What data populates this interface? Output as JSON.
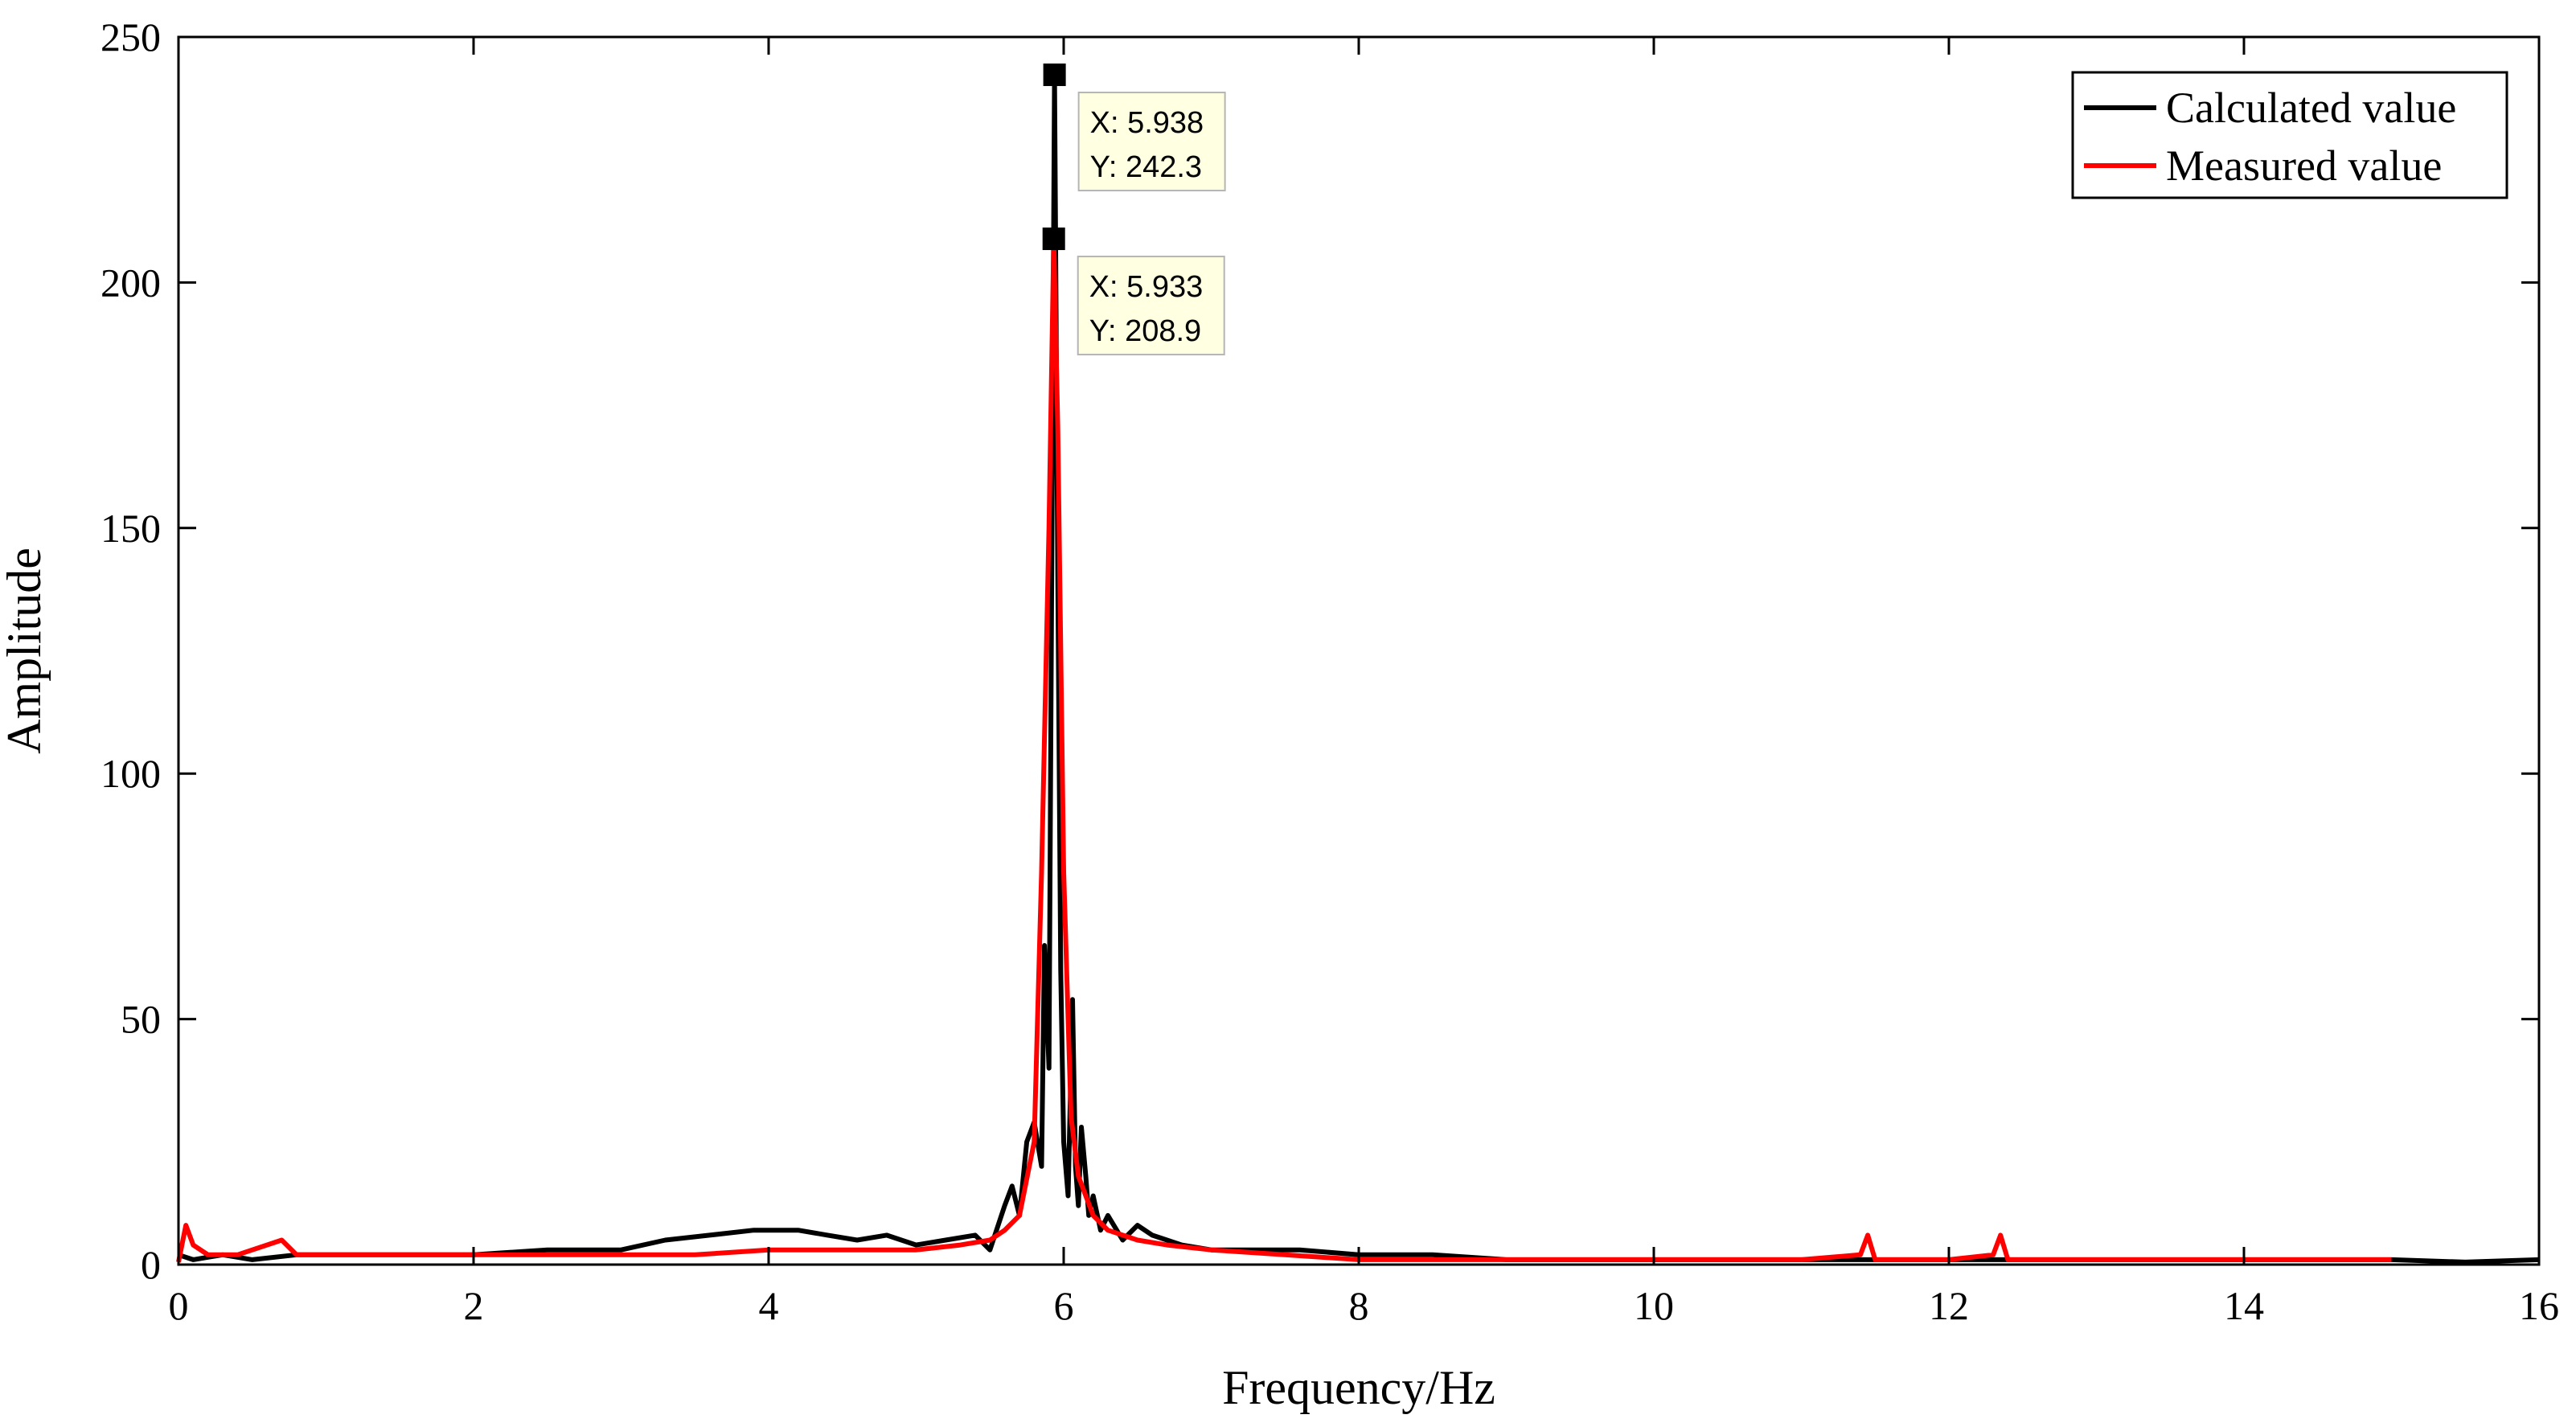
{
  "chart_data": {
    "type": "line",
    "xlabel": "Frequency/Hz",
    "ylabel": "Amplitude",
    "xlim": [
      0,
      16
    ],
    "ylim": [
      0,
      250
    ],
    "xticks": [
      0,
      2,
      4,
      6,
      8,
      10,
      12,
      14,
      16
    ],
    "yticks": [
      0,
      50,
      100,
      150,
      200,
      250
    ],
    "xtick_labels": [
      "0",
      "2",
      "4",
      "6",
      "8",
      "10",
      "12",
      "14",
      "16"
    ],
    "ytick_labels": [
      "0",
      "50",
      "100",
      "150",
      "200",
      "250"
    ],
    "grid": false,
    "legend_position": "top-right",
    "series": [
      {
        "name": "Calculated value",
        "color": "#000000",
        "x": [
          0,
          0.1,
          0.3,
          0.5,
          0.8,
          1.0,
          1.5,
          2.0,
          2.5,
          3.0,
          3.3,
          3.6,
          3.9,
          4.2,
          4.4,
          4.6,
          4.8,
          5.0,
          5.2,
          5.4,
          5.5,
          5.6,
          5.65,
          5.7,
          5.75,
          5.8,
          5.85,
          5.87,
          5.9,
          5.938,
          5.96,
          5.98,
          6.0,
          6.03,
          6.06,
          6.08,
          6.1,
          6.12,
          6.15,
          6.17,
          6.2,
          6.25,
          6.3,
          6.4,
          6.5,
          6.6,
          6.7,
          6.8,
          7.0,
          7.3,
          7.6,
          8.0,
          8.5,
          9.0,
          10.0,
          11.0,
          12.0,
          13.0,
          14.0,
          15.0,
          15.5,
          16.0
        ],
        "y": [
          2,
          1,
          2,
          1,
          2,
          2,
          2,
          2,
          3,
          3,
          5,
          6,
          7,
          7,
          6,
          5,
          6,
          4,
          5,
          6,
          3,
          12,
          16,
          10,
          25,
          29,
          20,
          65,
          40,
          242.3,
          140,
          60,
          25,
          14,
          54,
          20,
          12,
          28,
          18,
          10,
          14,
          7,
          10,
          5,
          8,
          6,
          5,
          4,
          3,
          3,
          3,
          2,
          2,
          1,
          1,
          1,
          1,
          1,
          1,
          1,
          0.5,
          1
        ]
      },
      {
        "name": "Measured value",
        "color": "#ff0000",
        "x": [
          0,
          0.05,
          0.1,
          0.2,
          0.4,
          0.7,
          0.8,
          1.0,
          1.5,
          2.0,
          2.5,
          3.0,
          3.5,
          4.0,
          4.5,
          5.0,
          5.3,
          5.5,
          5.6,
          5.7,
          5.8,
          5.85,
          5.9,
          5.933,
          5.96,
          6.0,
          6.05,
          6.1,
          6.2,
          6.3,
          6.5,
          6.7,
          7.0,
          7.5,
          8.0,
          9.0,
          10.0,
          11.0,
          11.4,
          11.45,
          11.5,
          12.0,
          12.3,
          12.35,
          12.4,
          13.0,
          14.0,
          15.0
        ],
        "y": [
          0.5,
          8,
          4,
          2,
          2,
          5,
          2,
          2,
          2,
          2,
          2,
          2,
          2,
          3,
          3,
          3,
          4,
          5,
          7,
          10,
          25,
          80,
          150,
          208.9,
          170,
          80,
          30,
          18,
          10,
          7,
          5,
          4,
          3,
          2,
          1,
          1,
          1,
          1,
          2,
          6,
          1,
          1,
          2,
          6,
          1,
          1,
          1,
          1
        ]
      }
    ],
    "annotations": [
      {
        "x_label": "X: 5.938",
        "y_label": "Y: 242.3",
        "x": 5.938,
        "y": 242.3
      },
      {
        "x_label": "X: 5.933",
        "y_label": "Y: 208.9",
        "x": 5.933,
        "y": 208.9
      }
    ]
  }
}
